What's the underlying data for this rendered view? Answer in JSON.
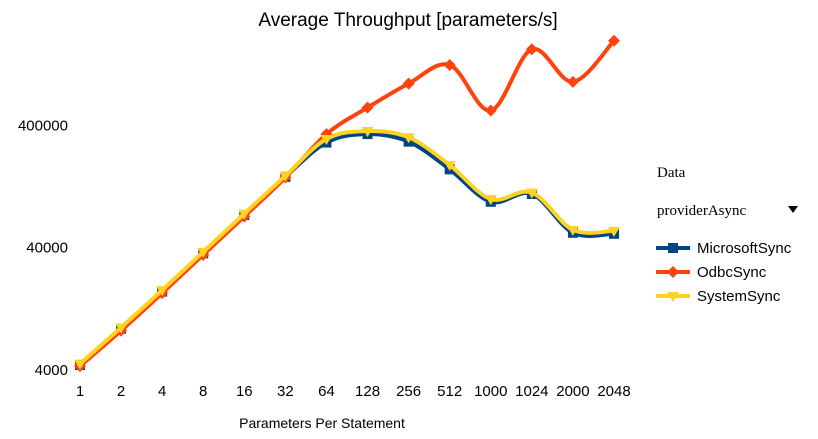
{
  "chart_data": {
    "type": "line",
    "title": "Average Throughput [parameters/s]",
    "xlabel": "Parameters Per Statement",
    "ylabel": "",
    "y_scale": "log",
    "ylim": [
      4000,
      2000000
    ],
    "y_ticks": [
      "4000",
      "40000",
      "400000"
    ],
    "categories": [
      "1",
      "2",
      "4",
      "8",
      "16",
      "32",
      "64",
      "128",
      "256",
      "512",
      "1000",
      "1024",
      "2000",
      "2048"
    ],
    "series": [
      {
        "name": "MicrosoftSync",
        "color": "#004586",
        "marker": "square",
        "values": [
          4400,
          8700,
          17500,
          36000,
          74000,
          152000,
          290000,
          340000,
          295000,
          175000,
          95000,
          110000,
          53000,
          52000
        ]
      },
      {
        "name": "OdbcSync",
        "color": "#ff420e",
        "marker": "diamond",
        "values": [
          4300,
          8400,
          17000,
          35000,
          72000,
          150000,
          340000,
          560000,
          880000,
          1250000,
          530000,
          1680000,
          910000,
          1970000
        ]
      },
      {
        "name": "SystemSync",
        "color": "#ffd320",
        "marker": "triangle-down",
        "values": [
          4500,
          8900,
          18000,
          37000,
          76000,
          155000,
          310000,
          360000,
          320000,
          190000,
          100000,
          113000,
          56000,
          55000
        ]
      }
    ],
    "legend_position": "right",
    "grid": false
  },
  "filter": {
    "label": "Data",
    "value": "providerAsync",
    "dropdown_icon": "triangle-down-icon"
  }
}
